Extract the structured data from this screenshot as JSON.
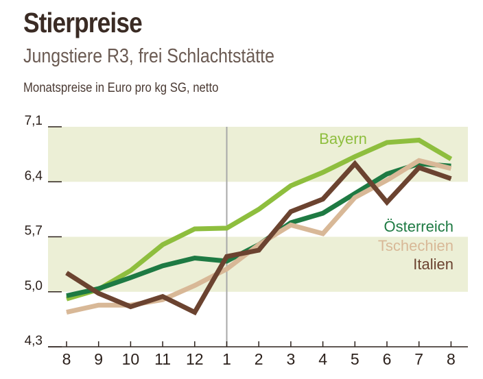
{
  "title": "Stierpreise",
  "subtitle": "Jungstiere R3, frei Schlachtstätte",
  "unit_label": "Monatspreise in Euro pro kg SG, netto",
  "colors": {
    "band": "#ecefd6",
    "divider": "#a8a8a8",
    "axis": "#2c211c"
  },
  "chart_data": {
    "type": "line",
    "categories": [
      "8",
      "9",
      "10",
      "11",
      "12",
      "1",
      "2",
      "3",
      "4",
      "5",
      "6",
      "7",
      "8"
    ],
    "yticks": [
      "4,3",
      "5,0",
      "5,7",
      "6,4",
      "7,1"
    ],
    "ylim": [
      4.3,
      7.1
    ],
    "grid": false,
    "year_divider_index": 5,
    "series": [
      {
        "name": "Bayern",
        "color": "#8ebe3e",
        "values": [
          4.91,
          5.03,
          5.27,
          5.6,
          5.8,
          5.81,
          6.05,
          6.35,
          6.52,
          6.72,
          6.9,
          6.93,
          6.69
        ]
      },
      {
        "name": "Österreich",
        "color": "#1e7a43",
        "values": [
          4.95,
          5.04,
          5.18,
          5.33,
          5.43,
          5.39,
          5.6,
          5.88,
          6.0,
          6.25,
          6.5,
          6.63,
          6.6
        ]
      },
      {
        "name": "Tschechien",
        "color": "#d8b897",
        "values": [
          4.74,
          4.83,
          4.83,
          4.9,
          5.08,
          5.29,
          5.6,
          5.85,
          5.74,
          6.2,
          6.42,
          6.67,
          6.57
        ]
      },
      {
        "name": "Italien",
        "color": "#6b4330",
        "values": [
          5.24,
          4.98,
          4.81,
          4.94,
          4.74,
          5.45,
          5.53,
          6.02,
          6.18,
          6.63,
          6.14,
          6.58,
          6.44
        ]
      }
    ]
  }
}
